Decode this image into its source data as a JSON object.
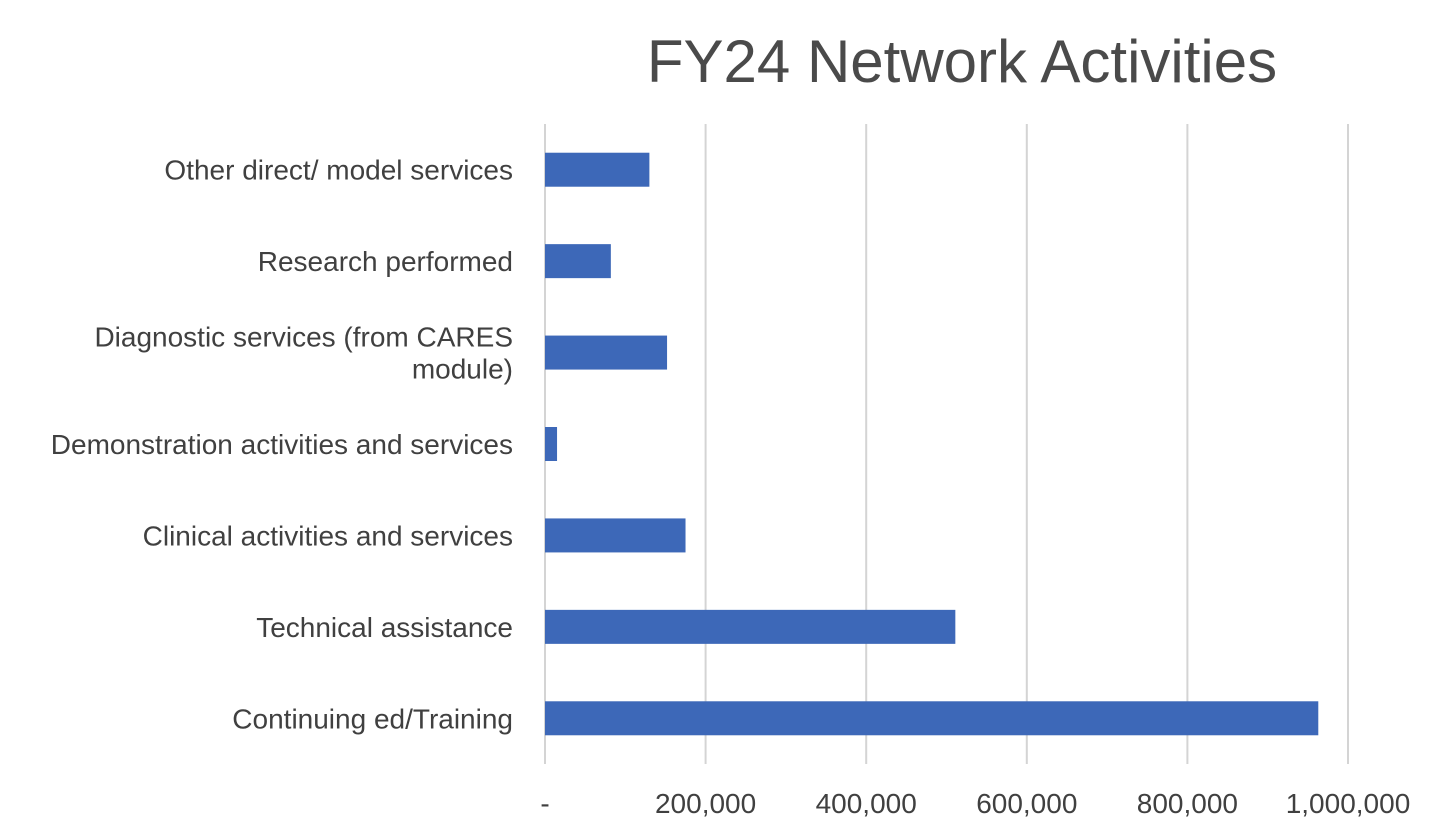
{
  "chart_data": {
    "type": "bar",
    "orientation": "horizontal",
    "title": "FY24 Network Activities",
    "categories": [
      "Other direct/ model services",
      "Research performed",
      "Diagnostic services (from CARES module)",
      "Demonstration activities and services",
      "Clinical activities and services",
      "Technical assistance",
      "Continuing ed/Training"
    ],
    "category_lines": [
      [
        "Other direct/ model services"
      ],
      [
        "Research performed"
      ],
      [
        "Diagnostic services (from CARES",
        "module)"
      ],
      [
        "Demonstration activities and services"
      ],
      [
        "Clinical activities and services"
      ],
      [
        "Technical assistance"
      ],
      [
        "Continuing ed/Training"
      ]
    ],
    "values": [
      130000,
      82000,
      152000,
      15000,
      175000,
      511000,
      963000
    ],
    "xlim": [
      0,
      1000000
    ],
    "x_ticks": [
      0,
      200000,
      400000,
      600000,
      800000,
      1000000
    ],
    "x_tick_labels": [
      "-",
      "200,000",
      "400,000",
      "600,000",
      "800,000",
      "1,000,000"
    ],
    "xlabel": "",
    "ylabel": "",
    "grid": "vertical",
    "legend": "none",
    "bar_color": "#3d68b8"
  }
}
